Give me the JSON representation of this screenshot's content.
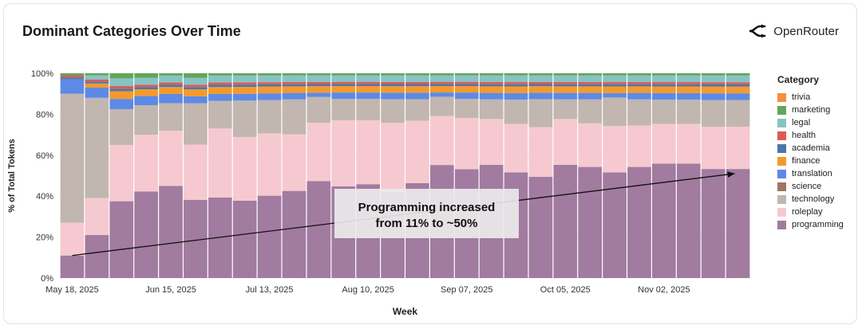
{
  "header": {
    "title": "Dominant Categories Over Time",
    "brand": "OpenRouter",
    "brand_icon": "openrouter-logo-icon"
  },
  "colors": {
    "trivia": "#f2903d",
    "marketing": "#62a55a",
    "legal": "#86c4c4",
    "health": "#dd5b55",
    "academia": "#4d76a8",
    "finance": "#f49a2c",
    "translation": "#5d8ae6",
    "science": "#9c7566",
    "technology": "#c1b7b0",
    "roleplay": "#f6c9d0",
    "programming": "#a27ba0"
  },
  "chart_data": {
    "type": "bar",
    "stacked": true,
    "ylabel": "% of Total Tokens",
    "xlabel": "Week",
    "ylim": [
      0,
      100
    ],
    "yticks": [
      "0%",
      "20%",
      "40%",
      "60%",
      "80%",
      "100%"
    ],
    "x": [
      "2025-05-18",
      "2025-05-25",
      "2025-06-01",
      "2025-06-08",
      "2025-06-15",
      "2025-06-22",
      "2025-06-29",
      "2025-07-06",
      "2025-07-13",
      "2025-07-20",
      "2025-07-27",
      "2025-08-03",
      "2025-08-10",
      "2025-08-17",
      "2025-08-24",
      "2025-08-31",
      "2025-09-07",
      "2025-09-14",
      "2025-09-21",
      "2025-09-28",
      "2025-10-05",
      "2025-10-12",
      "2025-10-19",
      "2025-10-26",
      "2025-11-02",
      "2025-11-09",
      "2025-11-16",
      "2025-11-23"
    ],
    "xtick_labels": [
      {
        "i": 0,
        "label": "May 18, 2025"
      },
      {
        "i": 4,
        "label": "Jun 15, 2025"
      },
      {
        "i": 8,
        "label": "Jul 13, 2025"
      },
      {
        "i": 12,
        "label": "Aug 10, 2025"
      },
      {
        "i": 16,
        "label": "Sep 07, 2025"
      },
      {
        "i": 20,
        "label": "Oct 05, 2025"
      },
      {
        "i": 24,
        "label": "Nov 02, 2025"
      }
    ],
    "legend": {
      "title": "Category",
      "placement": "right"
    },
    "series": [
      {
        "name": "programming",
        "values": [
          11,
          21,
          30,
          38,
          40,
          34,
          35,
          34,
          37,
          40,
          45,
          43,
          44,
          40,
          44,
          53,
          51,
          52,
          48,
          47,
          52,
          51,
          48,
          51,
          52,
          52,
          49,
          49
        ]
      },
      {
        "name": "roleplay",
        "values": [
          16,
          18,
          22,
          25,
          24,
          24,
          30,
          28,
          28,
          26,
          27,
          31,
          30,
          32,
          29,
          23,
          24,
          21,
          22,
          23,
          21,
          20,
          21,
          19,
          18,
          18,
          19,
          19
        ]
      },
      {
        "name": "technology",
        "values": [
          63,
          49,
          14,
          13,
          12,
          18,
          12,
          16,
          15,
          16,
          12,
          10,
          10,
          11,
          10,
          9,
          9,
          9,
          11,
          13,
          9,
          11,
          13,
          12,
          11,
          11,
          12,
          12
        ]
      },
      {
        "name": "science",
        "values": [
          0,
          0,
          0,
          0,
          0,
          0,
          0,
          0,
          0,
          0,
          0,
          0,
          0,
          0,
          0,
          0,
          0,
          0,
          0,
          0,
          0,
          0,
          0,
          0,
          0,
          0,
          0,
          0
        ]
      },
      {
        "name": "translation",
        "values": [
          7,
          5,
          4,
          4,
          4,
          3,
          3,
          3,
          3,
          3,
          2,
          3,
          3,
          3,
          3,
          2,
          3,
          3,
          3,
          3,
          3,
          3,
          2,
          3,
          3,
          3,
          3,
          3
        ]
      },
      {
        "name": "finance",
        "values": [
          0,
          2,
          3,
          3,
          3,
          3,
          3,
          3,
          3,
          3,
          3,
          3,
          3,
          3,
          3,
          3,
          3,
          3,
          3,
          3,
          3,
          3,
          3,
          3,
          3,
          3,
          3,
          3
        ]
      },
      {
        "name": "academia",
        "values": [
          1,
          1,
          1,
          1,
          1,
          1,
          1,
          1,
          1,
          1,
          1,
          1,
          1,
          1,
          1,
          1,
          1,
          1,
          1,
          1,
          1,
          1,
          1,
          1,
          1,
          1,
          1,
          1
        ]
      },
      {
        "name": "health",
        "values": [
          1,
          1,
          1,
          1,
          1,
          1,
          1,
          1,
          1,
          1,
          1,
          1,
          1,
          1,
          1,
          1,
          1,
          1,
          1,
          1,
          1,
          1,
          1,
          1,
          1,
          1,
          1,
          1
        ]
      },
      {
        "name": "legal",
        "values": [
          0,
          2,
          3,
          3,
          3,
          3,
          3,
          3,
          3,
          3,
          3,
          3,
          3,
          3,
          3,
          3,
          3,
          3,
          3,
          3,
          3,
          3,
          3,
          3,
          3,
          3,
          3,
          3
        ]
      },
      {
        "name": "marketing",
        "values": [
          1,
          1,
          2,
          2,
          1,
          2,
          1,
          1,
          1,
          1,
          1,
          1,
          1,
          1,
          1,
          1,
          1,
          1,
          1,
          1,
          1,
          1,
          1,
          1,
          1,
          1,
          1,
          1
        ]
      },
      {
        "name": "trivia",
        "values": [
          0,
          0,
          0,
          0,
          0,
          0,
          0,
          0,
          0,
          0,
          0,
          0,
          0,
          0,
          0,
          0,
          0,
          0,
          0,
          0,
          0,
          0,
          0,
          0,
          0,
          0,
          0,
          0
        ]
      }
    ],
    "annotation": {
      "lines": [
        "Programming increased",
        "from 11% to ~50%"
      ],
      "arrow_from": {
        "i": 0,
        "y": 11
      },
      "arrow_to": {
        "i": 27,
        "y": 51
      }
    }
  }
}
